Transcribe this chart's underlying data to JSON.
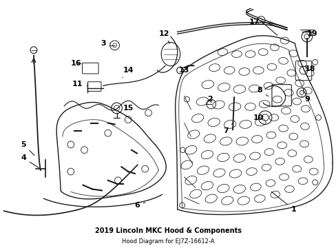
{
  "title": "2019 Lincoln MKC Hood & Components",
  "subtitle": "Hood Diagram for EJ7Z-16612-A",
  "bg_color": "#ffffff",
  "line_color": "#1a1a1a",
  "text_color": "#000000",
  "fig_width": 4.89,
  "fig_height": 3.6,
  "dpi": 100,
  "label_fontsize": 8,
  "title_fontsize": 7,
  "subtitle_fontsize": 6
}
